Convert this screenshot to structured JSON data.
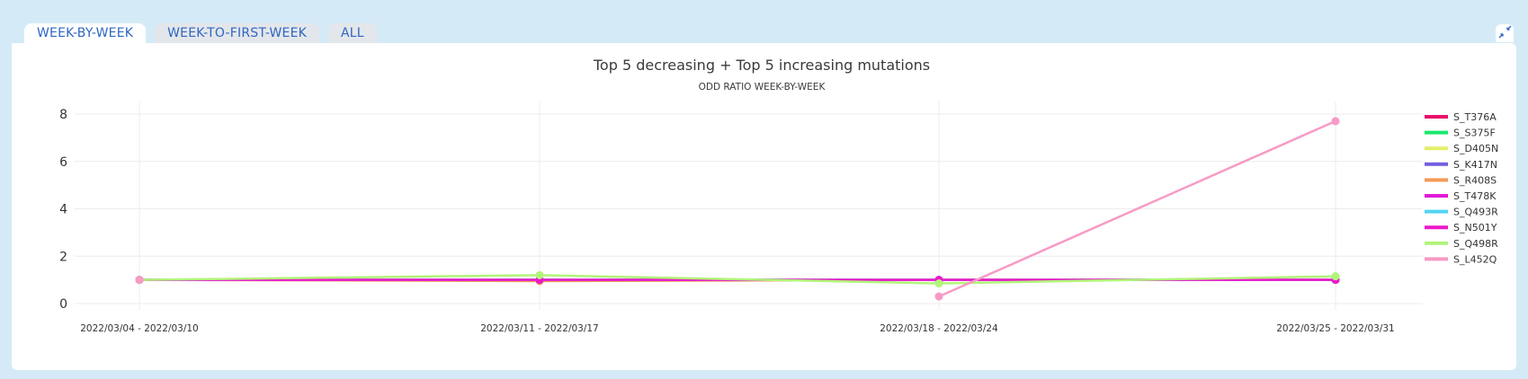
{
  "tabs": [
    {
      "label": "WEEK-BY-WEEK",
      "active": true
    },
    {
      "label": "WEEK-TO-FIRST-WEEK",
      "active": false
    },
    {
      "label": "ALL",
      "active": false
    }
  ],
  "expand_icon": "collapse-arrows-icon",
  "chart_data": {
    "type": "line",
    "title": "Top 5 decreasing + Top 5 increasing mutations",
    "subtitle": "ODD RATIO WEEK-BY-WEEK",
    "xlabel": "",
    "ylabel": "",
    "ylim": [
      0,
      8
    ],
    "yticks": [
      0,
      2,
      4,
      6,
      8
    ],
    "grid": true,
    "legend_position": "right",
    "categories": [
      "2022/03/04 - 2022/03/10",
      "2022/03/11 - 2022/03/17",
      "2022/03/18 - 2022/03/24",
      "2022/03/25 - 2022/03/31"
    ],
    "series": [
      {
        "name": "S_T376A",
        "color": "#e8106a",
        "values": [
          1.0,
          1.0,
          1.0,
          1.0
        ]
      },
      {
        "name": "S_S375F",
        "color": "#19e86d",
        "values": [
          1.0,
          1.0,
          1.0,
          1.0
        ]
      },
      {
        "name": "S_D405N",
        "color": "#e3ef6a",
        "values": [
          1.0,
          1.0,
          1.0,
          1.0
        ]
      },
      {
        "name": "S_K417N",
        "color": "#7460e0",
        "values": [
          1.0,
          1.0,
          1.0,
          1.0
        ]
      },
      {
        "name": "S_R408S",
        "color": "#f59a55",
        "values": [
          1.0,
          0.95,
          1.0,
          1.0
        ]
      },
      {
        "name": "S_T478K",
        "color": "#e219d7",
        "values": [
          1.0,
          1.0,
          1.0,
          1.0
        ]
      },
      {
        "name": "S_Q493R",
        "color": "#52d4f2",
        "values": [
          1.0,
          1.0,
          1.0,
          1.0
        ]
      },
      {
        "name": "S_N501Y",
        "color": "#ee18c9",
        "values": [
          1.0,
          1.0,
          1.0,
          1.0
        ]
      },
      {
        "name": "S_Q498R",
        "color": "#b2f57a",
        "values": [
          1.0,
          1.2,
          0.85,
          1.15
        ]
      },
      {
        "name": "S_L452Q",
        "color": "#f79ac5",
        "values": [
          1.0,
          null,
          0.3,
          7.7
        ]
      }
    ]
  }
}
